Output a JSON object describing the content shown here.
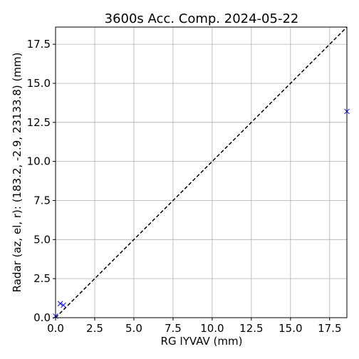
{
  "chart_data": {
    "type": "scatter",
    "title": "3600s Acc. Comp. 2024-05-22",
    "xlabel": "RG IYVAV (mm)",
    "ylabel": "Radar (az, el, r): (183.2, -2.9, 23133.8) (mm)",
    "xlim": [
      0,
      18.6
    ],
    "ylim": [
      0,
      18.6
    ],
    "xticks": [
      "0.0",
      "2.5",
      "5.0",
      "7.5",
      "10.0",
      "12.5",
      "15.0",
      "17.5"
    ],
    "yticks": [
      "0.0",
      "2.5",
      "5.0",
      "7.5",
      "10.0",
      "12.5",
      "15.0",
      "17.5"
    ],
    "tick_values": [
      0,
      2.5,
      5,
      7.5,
      10,
      12.5,
      15,
      17.5
    ],
    "grid": true,
    "reference_line": {
      "style": "dashed",
      "color": "#000000",
      "from": [
        0,
        0
      ],
      "to": [
        18.6,
        18.6
      ]
    },
    "series": [
      {
        "marker": "x",
        "color": "#0000ff",
        "points": [
          {
            "x": 0.0,
            "y": 0.1
          },
          {
            "x": 0.3,
            "y": 0.9
          },
          {
            "x": 0.5,
            "y": 0.8
          },
          {
            "x": 18.6,
            "y": 13.2
          }
        ]
      }
    ]
  }
}
